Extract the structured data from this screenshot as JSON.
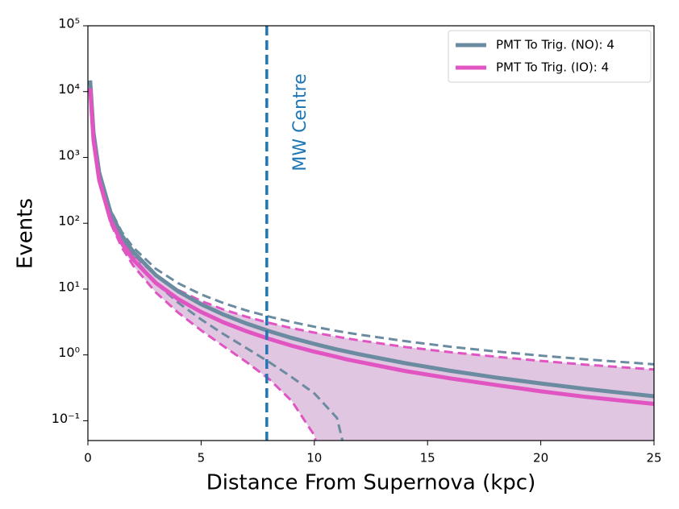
{
  "chart_data": {
    "type": "line",
    "xlabel": "Distance From Supernova (kpc)",
    "ylabel": "Events",
    "log_y": true,
    "legend": "upper right",
    "x": [
      0.1,
      0.25,
      0.5,
      1,
      1.5,
      2,
      3,
      4,
      5,
      6,
      7,
      8,
      9,
      10,
      10.2,
      11,
      11.4,
      12,
      14,
      16,
      18,
      20,
      22,
      25
    ],
    "series": [
      {
        "name": "PMT To Trig. (NO): 4",
        "color": "#6a8ba0",
        "values": [
          14700,
          2352,
          588,
          147,
          65.3,
          36.8,
          16.3,
          9.19,
          5.88,
          4.08,
          3.0,
          2.3,
          1.81,
          1.47,
          1.41,
          1.21,
          1.13,
          1.02,
          0.75,
          0.574,
          0.454,
          0.368,
          0.304,
          0.235
        ],
        "upper": [
          14821,
          2400,
          612,
          159,
          73.4,
          42.9,
          20.3,
          12.2,
          8.3,
          6.1,
          4.73,
          3.82,
          3.16,
          2.68,
          2.6,
          2.31,
          2.19,
          2.03,
          1.62,
          1.33,
          1.13,
          0.975,
          0.855,
          0.72
        ],
        "lower": [
          14579,
          2304,
          564,
          135,
          57.2,
          30.7,
          12.3,
          6.16,
          3.46,
          2.06,
          1.27,
          0.78,
          0.46,
          0.26,
          0.22,
          0.11,
          0.03,
          null,
          null,
          null,
          null,
          null,
          null,
          null
        ]
      },
      {
        "name": "PMT To Trig. (IO): 4",
        "color": "#e055c2",
        "fill_color": "#dcbcdc",
        "values": [
          11200,
          1792,
          448,
          112,
          49.8,
          28,
          12.4,
          7.0,
          4.48,
          3.11,
          2.29,
          1.75,
          1.38,
          1.12,
          1.08,
          0.93,
          0.86,
          0.78,
          0.57,
          0.44,
          0.35,
          0.28,
          0.23,
          0.18
        ],
        "upper": [
          11306,
          1834,
          469,
          123,
          56.9,
          33.3,
          15.9,
          9.65,
          6.6,
          4.87,
          3.8,
          3.07,
          2.55,
          2.18,
          2.12,
          1.89,
          1.79,
          1.66,
          1.32,
          1.1,
          0.94,
          0.81,
          0.71,
          0.6
        ],
        "lower": [
          11094,
          1750,
          427,
          101,
          42.7,
          22.7,
          8.9,
          4.35,
          2.36,
          1.35,
          0.78,
          0.43,
          0.2,
          0.06,
          0.03,
          null,
          null,
          null,
          null,
          null,
          null,
          null,
          null,
          null
        ]
      }
    ],
    "annotation": {
      "x": 7.9,
      "text": "MW Centre",
      "color": "#1f77b4"
    },
    "xlim": [
      0,
      25
    ],
    "xticks": [
      0,
      5,
      10,
      15,
      20,
      25
    ],
    "ylim": [
      0.05,
      100000
    ],
    "yticks": [
      {
        "value": 0.1,
        "label": "10⁻¹"
      },
      {
        "value": 1,
        "label": "10⁰"
      },
      {
        "value": 10,
        "label": "10¹"
      },
      {
        "value": 100,
        "label": "10²"
      },
      {
        "value": 1000,
        "label": "10³"
      },
      {
        "value": 10000,
        "label": "10⁴"
      },
      {
        "value": 100000,
        "label": "10⁵"
      }
    ]
  }
}
